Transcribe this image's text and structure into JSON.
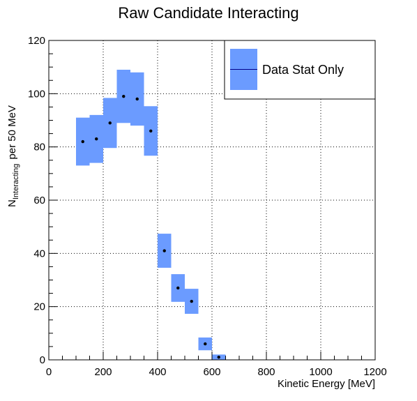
{
  "chart_data": {
    "type": "scatter",
    "title": "Raw Candidate Interacting",
    "xlabel": "Kinetic Energy [MeV]",
    "ylabel": {
      "main": "N",
      "subscript": "Interacting",
      "suffix": " per 50 MeV"
    },
    "xlim": [
      0,
      1200
    ],
    "ylim": [
      0,
      120
    ],
    "x_ticks": [
      0,
      200,
      400,
      600,
      800,
      1000,
      1200
    ],
    "y_ticks": [
      0,
      20,
      40,
      60,
      80,
      100,
      120
    ],
    "grid": true,
    "legend": {
      "position": "top-right",
      "entries": [
        "Data Stat Only"
      ]
    },
    "band_color": "#6b9bff",
    "point_color": "#000000",
    "series": [
      {
        "name": "Data Stat Only",
        "points": [
          {
            "x": 125,
            "y": 82,
            "err": 9
          },
          {
            "x": 175,
            "y": 83,
            "err": 9
          },
          {
            "x": 225,
            "y": 89,
            "err": 9.4
          },
          {
            "x": 275,
            "y": 99,
            "err": 10
          },
          {
            "x": 325,
            "y": 98,
            "err": 10
          },
          {
            "x": 375,
            "y": 86,
            "err": 9.3
          },
          {
            "x": 425,
            "y": 41,
            "err": 6.4
          },
          {
            "x": 475,
            "y": 27,
            "err": 5.2
          },
          {
            "x": 525,
            "y": 22,
            "err": 4.7
          },
          {
            "x": 575,
            "y": 6,
            "err": 2.4
          },
          {
            "x": 625,
            "y": 1,
            "err": 1
          }
        ]
      }
    ]
  }
}
